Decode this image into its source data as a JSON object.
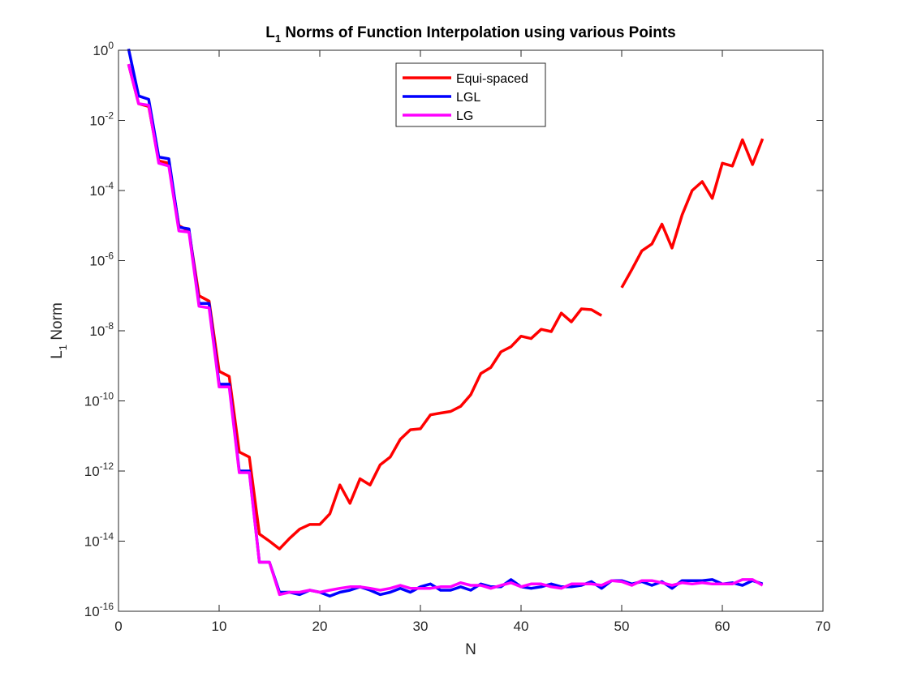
{
  "chart_data": {
    "type": "line",
    "title": {
      "prefix": "L",
      "subscript": "1",
      "rest": " Norms of Function Interpolation using various Points"
    },
    "xlabel": "N",
    "ylabel": {
      "prefix": "L",
      "subscript": "1",
      "rest": " Norm"
    },
    "xlim": [
      0,
      70
    ],
    "ylim": [
      1e-16,
      1
    ],
    "yscale": "log",
    "x_ticks": [
      0,
      10,
      20,
      30,
      40,
      50,
      60,
      70
    ],
    "y_tick_exponents": [
      -16,
      -14,
      -12,
      -10,
      -8,
      -6,
      -4,
      -2,
      0
    ],
    "y_tick_base": "10",
    "grid": false,
    "legend_position": "top-center",
    "series": [
      {
        "name": "Equi-spaced",
        "color": "#ff0000",
        "x": [
          1,
          2,
          3,
          4,
          5,
          6,
          7,
          8,
          9,
          10,
          11,
          12,
          13,
          14,
          15,
          16,
          17,
          18,
          19,
          20,
          21,
          22,
          23,
          24,
          25,
          26,
          27,
          28,
          29,
          30,
          31,
          32,
          33,
          34,
          35,
          36,
          37,
          38,
          39,
          40,
          41,
          42,
          43,
          44,
          45,
          46,
          47,
          48,
          50,
          51,
          52,
          53,
          54,
          55,
          56,
          57,
          58,
          59,
          60,
          61,
          62,
          63,
          64
        ],
        "y": [
          0.4,
          0.03,
          0.025,
          0.0007,
          0.0006,
          1e-05,
          7e-06,
          1e-07,
          7e-08,
          7e-10,
          5e-10,
          3.5e-12,
          2.5e-12,
          1.6e-14,
          1e-14,
          6e-15,
          1.2e-14,
          2.2e-14,
          3e-14,
          3e-14,
          6e-14,
          4e-13,
          1.2e-13,
          6e-13,
          4e-13,
          1.5e-12,
          2.5e-12,
          8e-12,
          1.5e-11,
          1.6e-11,
          4e-11,
          4.5e-11,
          5e-11,
          7e-11,
          1.5e-10,
          6e-10,
          9e-10,
          2.5e-09,
          3.5e-09,
          7e-09,
          6e-09,
          1.1e-08,
          9.5e-09,
          3.2e-08,
          1.8e-08,
          4.2e-08,
          4e-08,
          2.7e-08,
          1.7e-07,
          5.5e-07,
          1.9e-06,
          3e-06,
          1.1e-05,
          2.3e-06,
          2e-05,
          0.0001,
          0.00018,
          6e-05,
          0.0006,
          0.0005,
          0.0028,
          0.00055,
          0.003
        ]
      },
      {
        "name": "LGL",
        "color": "#0000ff",
        "x": [
          1,
          2,
          3,
          4,
          5,
          6,
          7,
          8,
          9,
          10,
          11,
          12,
          13,
          14,
          15,
          16,
          17,
          18,
          19,
          20,
          21,
          22,
          23,
          24,
          25,
          26,
          27,
          28,
          29,
          30,
          31,
          32,
          33,
          34,
          35,
          36,
          37,
          38,
          39,
          40,
          41,
          42,
          43,
          44,
          45,
          46,
          47,
          48,
          49,
          50,
          51,
          52,
          53,
          54,
          55,
          56,
          57,
          58,
          59,
          60,
          61,
          62,
          63,
          64
        ],
        "y": [
          1.1,
          0.05,
          0.04,
          0.0009,
          0.0008,
          9e-06,
          8e-06,
          6e-08,
          6e-08,
          3e-10,
          3e-10,
          1e-12,
          1e-12,
          2.5e-15,
          2.5e-15,
          3.5e-16,
          3.5e-16,
          3e-16,
          4e-16,
          3.5e-16,
          2.7e-16,
          3.5e-16,
          4e-16,
          5e-16,
          4e-16,
          3e-16,
          3.5e-16,
          4.5e-16,
          3.5e-16,
          5e-16,
          6e-16,
          4e-16,
          4e-16,
          5e-16,
          4e-16,
          6e-16,
          5e-16,
          5e-16,
          8e-16,
          5e-16,
          4.5e-16,
          5e-16,
          6e-16,
          5e-16,
          5e-16,
          5.5e-16,
          7e-16,
          4.5e-16,
          7.5e-16,
          7.5e-16,
          6e-16,
          7e-16,
          5.5e-16,
          7e-16,
          4.5e-16,
          7.5e-16,
          7.5e-16,
          7.5e-16,
          8e-16,
          6e-16,
          6.5e-16,
          5.5e-16,
          7.5e-16,
          6e-16
        ]
      },
      {
        "name": "LG",
        "color": "#ff00ff",
        "x": [
          1,
          2,
          3,
          4,
          5,
          6,
          7,
          8,
          9,
          10,
          11,
          12,
          13,
          14,
          15,
          16,
          17,
          18,
          19,
          20,
          21,
          22,
          23,
          24,
          25,
          26,
          27,
          28,
          29,
          30,
          31,
          32,
          33,
          34,
          35,
          36,
          37,
          38,
          39,
          40,
          41,
          42,
          43,
          44,
          45,
          46,
          47,
          48,
          49,
          50,
          51,
          52,
          53,
          54,
          55,
          56,
          57,
          58,
          59,
          60,
          61,
          62,
          63,
          64
        ],
        "y": [
          0.4,
          0.03,
          0.027,
          0.0006,
          0.0005,
          7e-06,
          6.5e-06,
          5e-08,
          4.5e-08,
          2.5e-10,
          2.5e-10,
          9e-13,
          9e-13,
          2.5e-15,
          2.5e-15,
          3e-16,
          3.5e-16,
          3.5e-16,
          4e-16,
          3.5e-16,
          4e-16,
          4.5e-16,
          5e-16,
          5e-16,
          4.5e-16,
          4e-16,
          4.5e-16,
          5.5e-16,
          4.5e-16,
          4.5e-16,
          4.5e-16,
          5e-16,
          5e-16,
          6.5e-16,
          5.5e-16,
          5.5e-16,
          4.5e-16,
          5.5e-16,
          6.5e-16,
          5e-16,
          6e-16,
          6e-16,
          5e-16,
          4.5e-16,
          6e-16,
          6e-16,
          6e-16,
          5.5e-16,
          7.5e-16,
          7e-16,
          5.5e-16,
          7.5e-16,
          7.5e-16,
          6.5e-16,
          5.5e-16,
          6.5e-16,
          6e-16,
          6.5e-16,
          6e-16,
          6e-16,
          6e-16,
          8e-16,
          8e-16,
          5.5e-16
        ]
      }
    ]
  }
}
